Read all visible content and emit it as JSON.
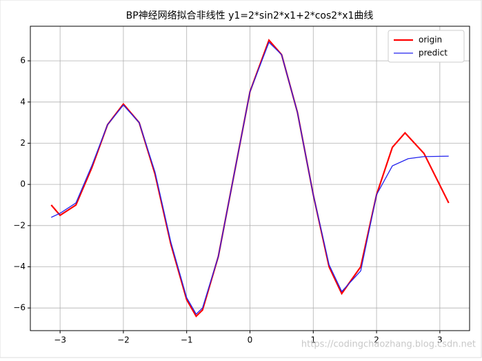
{
  "chart_data": {
    "type": "line",
    "title": "BP神经网络拟合非线性  y1=2*sin2*x1+2*cos2*x1曲线",
    "xlim": [
      -3.47,
      3.47
    ],
    "ylim": [
      -7.1,
      7.68
    ],
    "xticks": [
      {
        "value": -3,
        "label": "−3"
      },
      {
        "value": -2,
        "label": "−2"
      },
      {
        "value": -1,
        "label": "−1"
      },
      0,
      1,
      2,
      3
    ],
    "yticks": [
      {
        "value": -6,
        "label": "−6"
      },
      {
        "value": -4,
        "label": "−4"
      },
      {
        "value": -2,
        "label": "−2"
      },
      0,
      2,
      4,
      6
    ],
    "grid": true,
    "legend": "upper right",
    "series": [
      {
        "name": "origin",
        "color": "#ff0000",
        "x": [
          -3.14,
          -3.0,
          -2.75,
          -2.5,
          -2.25,
          -2.0,
          -1.75,
          -1.5,
          -1.25,
          -1.0,
          -0.85,
          -0.75,
          -0.5,
          -0.25,
          0,
          0.3,
          0.5,
          0.75,
          1.0,
          1.25,
          1.45,
          1.75,
          2.0,
          2.25,
          2.45,
          2.75,
          3.14
        ],
        "values": [
          -1.0,
          -1.5,
          -1.0,
          0.8,
          2.9,
          3.9,
          3.0,
          0.5,
          -2.9,
          -5.6,
          -6.4,
          -6.1,
          -3.5,
          0.5,
          4.5,
          7.0,
          6.3,
          3.5,
          -0.5,
          -4.0,
          -5.3,
          -4.0,
          -0.5,
          1.8,
          2.5,
          1.5,
          -0.9
        ]
      },
      {
        "name": "predict",
        "color": "#2222ee",
        "x": [
          -3.14,
          -3.0,
          -2.75,
          -2.5,
          -2.25,
          -2.0,
          -1.75,
          -1.5,
          -1.25,
          -1.0,
          -0.85,
          -0.75,
          -0.5,
          -0.25,
          0,
          0.3,
          0.5,
          0.75,
          1.0,
          1.25,
          1.45,
          1.75,
          2.0,
          2.25,
          2.5,
          2.75,
          3.14
        ],
        "values": [
          -1.6,
          -1.4,
          -0.9,
          0.9,
          2.9,
          3.85,
          3.0,
          0.6,
          -2.8,
          -5.5,
          -6.3,
          -6.0,
          -3.5,
          0.5,
          4.5,
          6.9,
          6.3,
          3.5,
          -0.5,
          -3.9,
          -5.2,
          -4.2,
          -0.5,
          0.9,
          1.25,
          1.35,
          1.37
        ]
      }
    ],
    "watermark": "https://codingchaozhang.blog.csdn.net"
  }
}
